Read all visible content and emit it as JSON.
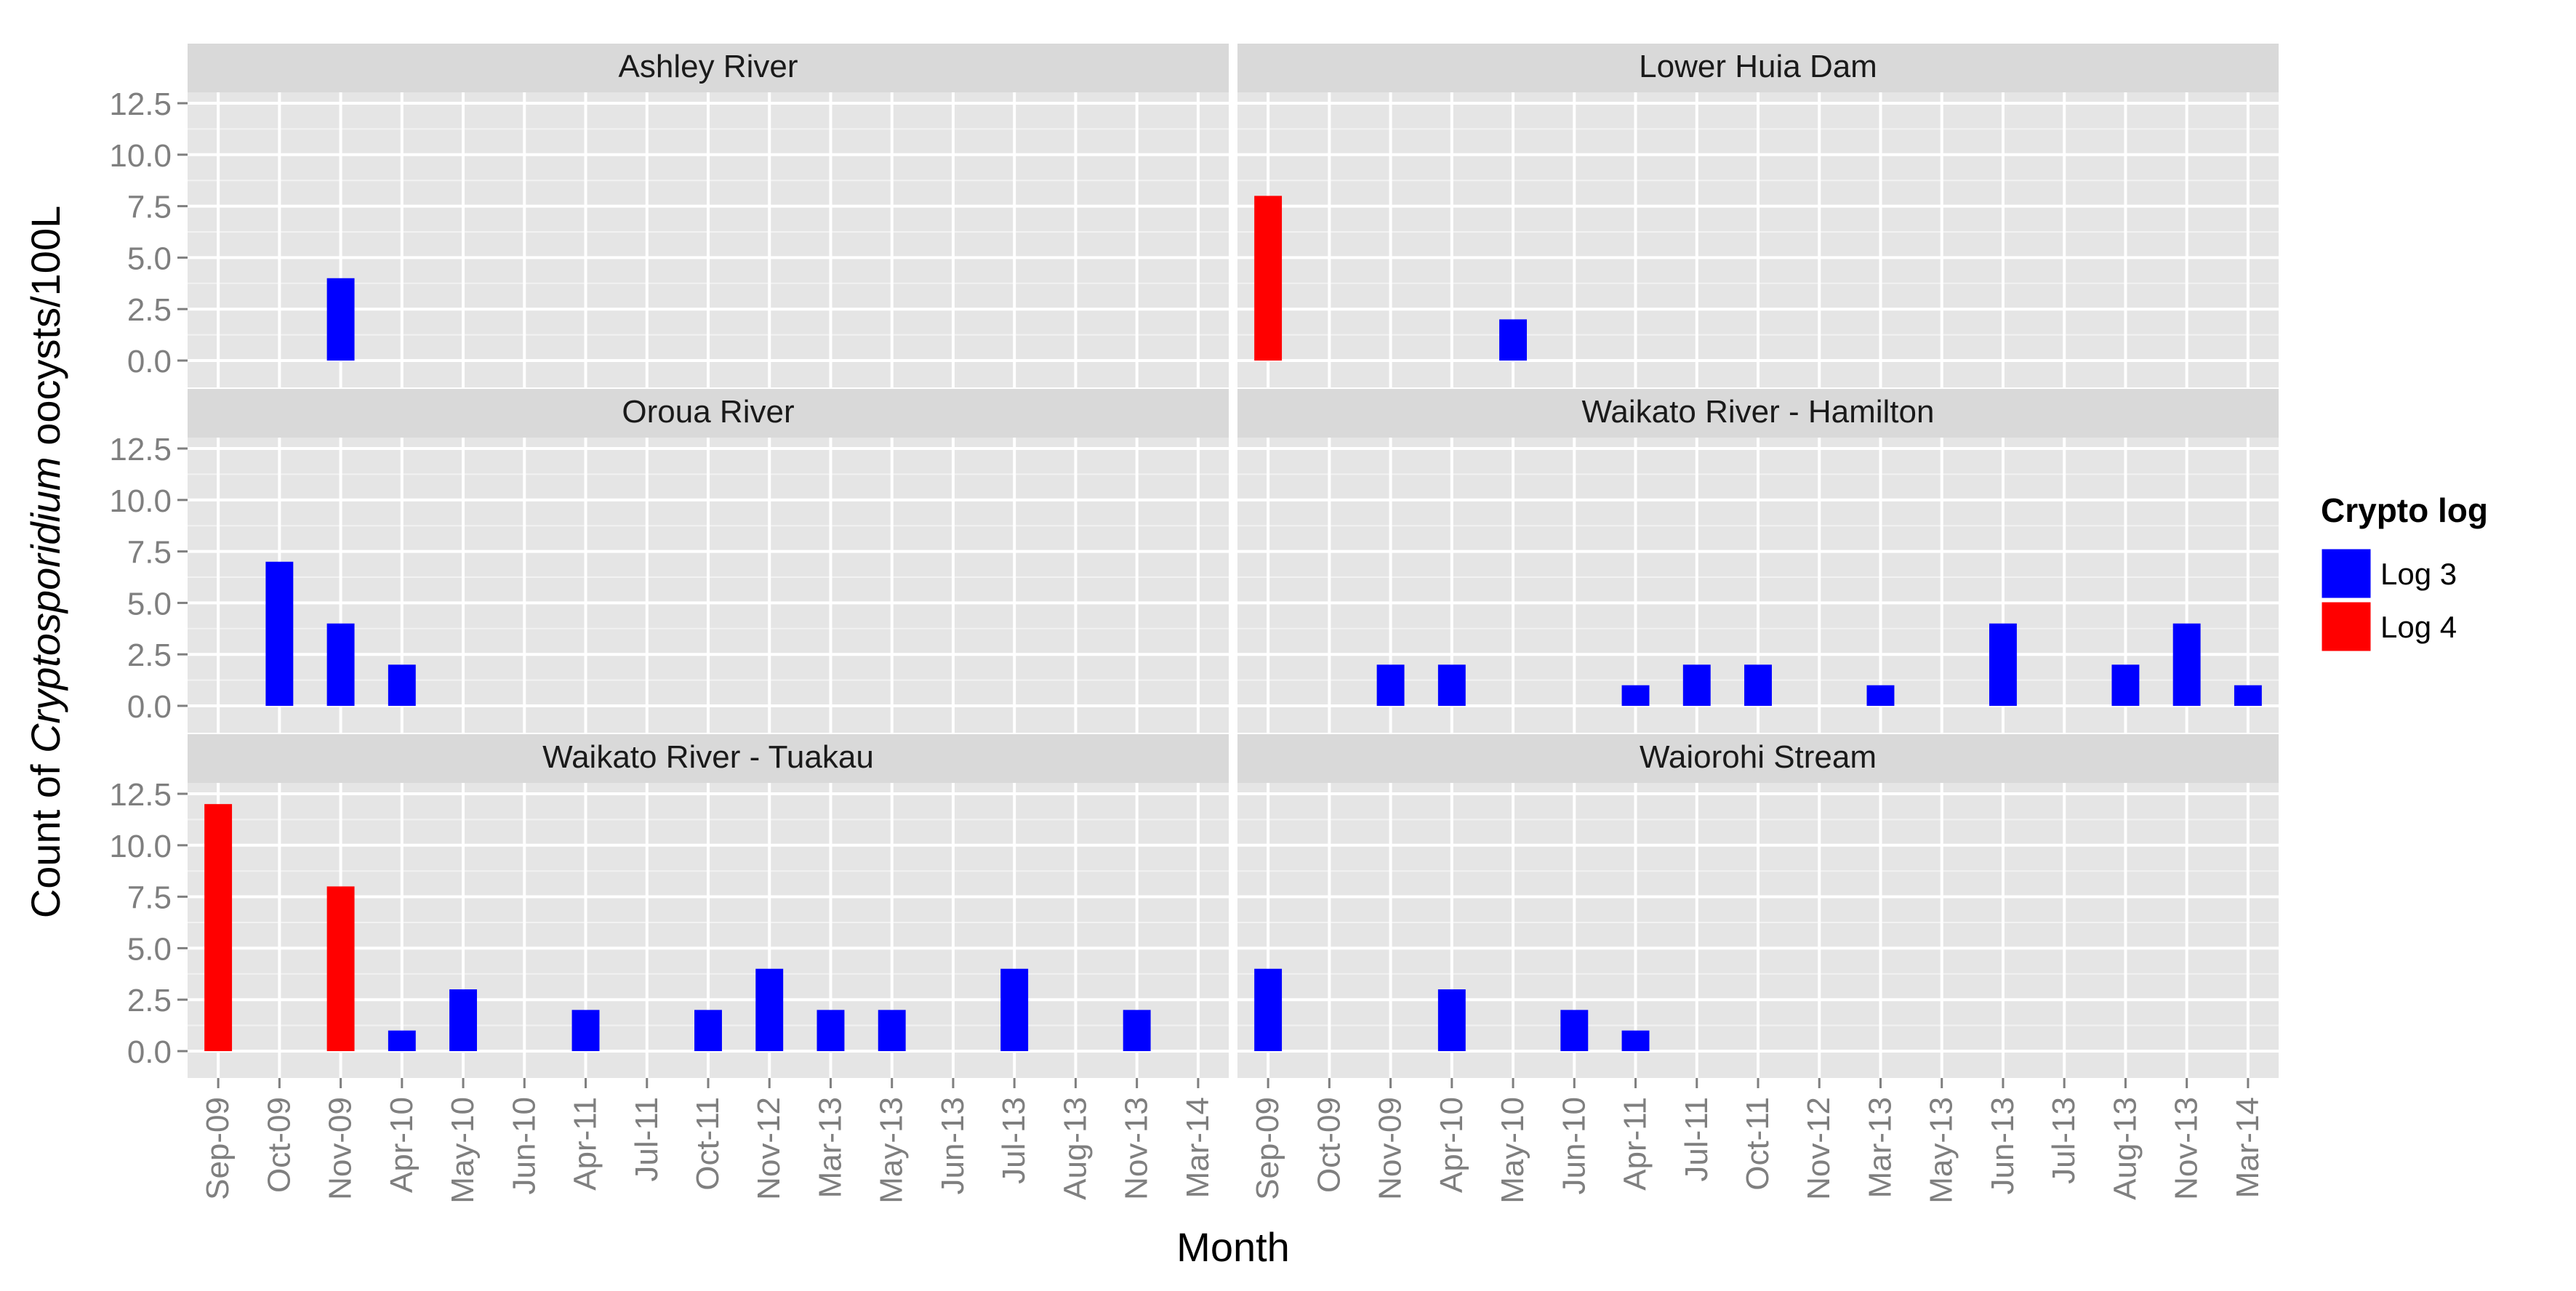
{
  "chart_data": {
    "type": "bar",
    "faceted": true,
    "ylabel_prefix": "Count of ",
    "ylabel_italic": "Cryptosporidium",
    "ylabel_suffix": " oocysts/100L",
    "xlabel": "Month",
    "ylim": [
      0,
      12.5
    ],
    "yticks": [
      "0.0",
      "2.5",
      "5.0",
      "7.5",
      "10.0",
      "12.5"
    ],
    "categories": [
      "Sep-09",
      "Oct-09",
      "Nov-09",
      "Apr-10",
      "May-10",
      "Jun-10",
      "Apr-11",
      "Jul-11",
      "Oct-11",
      "Nov-12",
      "Mar-13",
      "May-13",
      "Jun-13",
      "Jul-13",
      "Aug-13",
      "Nov-13",
      "Mar-14"
    ],
    "grid": true,
    "legend": {
      "title": "Crypto log",
      "position": "right",
      "items": [
        {
          "label": "Log 3",
          "color": "#0000ff"
        },
        {
          "label": "Log 4",
          "color": "#ff0000"
        }
      ]
    },
    "panels": [
      {
        "title": "Ashley River",
        "bars": [
          {
            "category": "Nov-09",
            "value": 4,
            "log": "Log 3"
          }
        ]
      },
      {
        "title": "Lower Huia Dam",
        "bars": [
          {
            "category": "Sep-09",
            "value": 8,
            "log": "Log 4"
          },
          {
            "category": "May-10",
            "value": 2,
            "log": "Log 3"
          }
        ]
      },
      {
        "title": "Oroua River",
        "bars": [
          {
            "category": "Oct-09",
            "value": 7,
            "log": "Log 3"
          },
          {
            "category": "Nov-09",
            "value": 4,
            "log": "Log 3"
          },
          {
            "category": "Apr-10",
            "value": 2,
            "log": "Log 3"
          }
        ]
      },
      {
        "title": "Waikato River - Hamilton",
        "bars": [
          {
            "category": "Nov-09",
            "value": 2,
            "log": "Log 3"
          },
          {
            "category": "Apr-10",
            "value": 2,
            "log": "Log 3"
          },
          {
            "category": "Apr-11",
            "value": 1,
            "log": "Log 3"
          },
          {
            "category": "Jul-11",
            "value": 2,
            "log": "Log 3"
          },
          {
            "category": "Oct-11",
            "value": 2,
            "log": "Log 3"
          },
          {
            "category": "Mar-13",
            "value": 1,
            "log": "Log 3"
          },
          {
            "category": "Jun-13",
            "value": 4,
            "log": "Log 3"
          },
          {
            "category": "Aug-13",
            "value": 2,
            "log": "Log 3"
          },
          {
            "category": "Nov-13",
            "value": 4,
            "log": "Log 3"
          },
          {
            "category": "Mar-14",
            "value": 1,
            "log": "Log 3"
          }
        ]
      },
      {
        "title": "Waikato River - Tuakau",
        "bars": [
          {
            "category": "Sep-09",
            "value": 12,
            "log": "Log 4"
          },
          {
            "category": "Nov-09",
            "value": 8,
            "log": "Log 4"
          },
          {
            "category": "Apr-10",
            "value": 1,
            "log": "Log 3"
          },
          {
            "category": "May-10",
            "value": 3,
            "log": "Log 3"
          },
          {
            "category": "Apr-11",
            "value": 2,
            "log": "Log 3"
          },
          {
            "category": "Oct-11",
            "value": 2,
            "log": "Log 3"
          },
          {
            "category": "Nov-12",
            "value": 4,
            "log": "Log 3"
          },
          {
            "category": "Mar-13",
            "value": 2,
            "log": "Log 3"
          },
          {
            "category": "May-13",
            "value": 2,
            "log": "Log 3"
          },
          {
            "category": "Jul-13",
            "value": 4,
            "log": "Log 3"
          },
          {
            "category": "Nov-13",
            "value": 2,
            "log": "Log 3"
          }
        ]
      },
      {
        "title": "Waiorohi Stream",
        "bars": [
          {
            "category": "Sep-09",
            "value": 4,
            "log": "Log 3"
          },
          {
            "category": "Apr-10",
            "value": 3,
            "log": "Log 3"
          },
          {
            "category": "Jun-10",
            "value": 2,
            "log": "Log 3"
          },
          {
            "category": "Apr-11",
            "value": 1,
            "log": "Log 3"
          }
        ]
      }
    ]
  }
}
